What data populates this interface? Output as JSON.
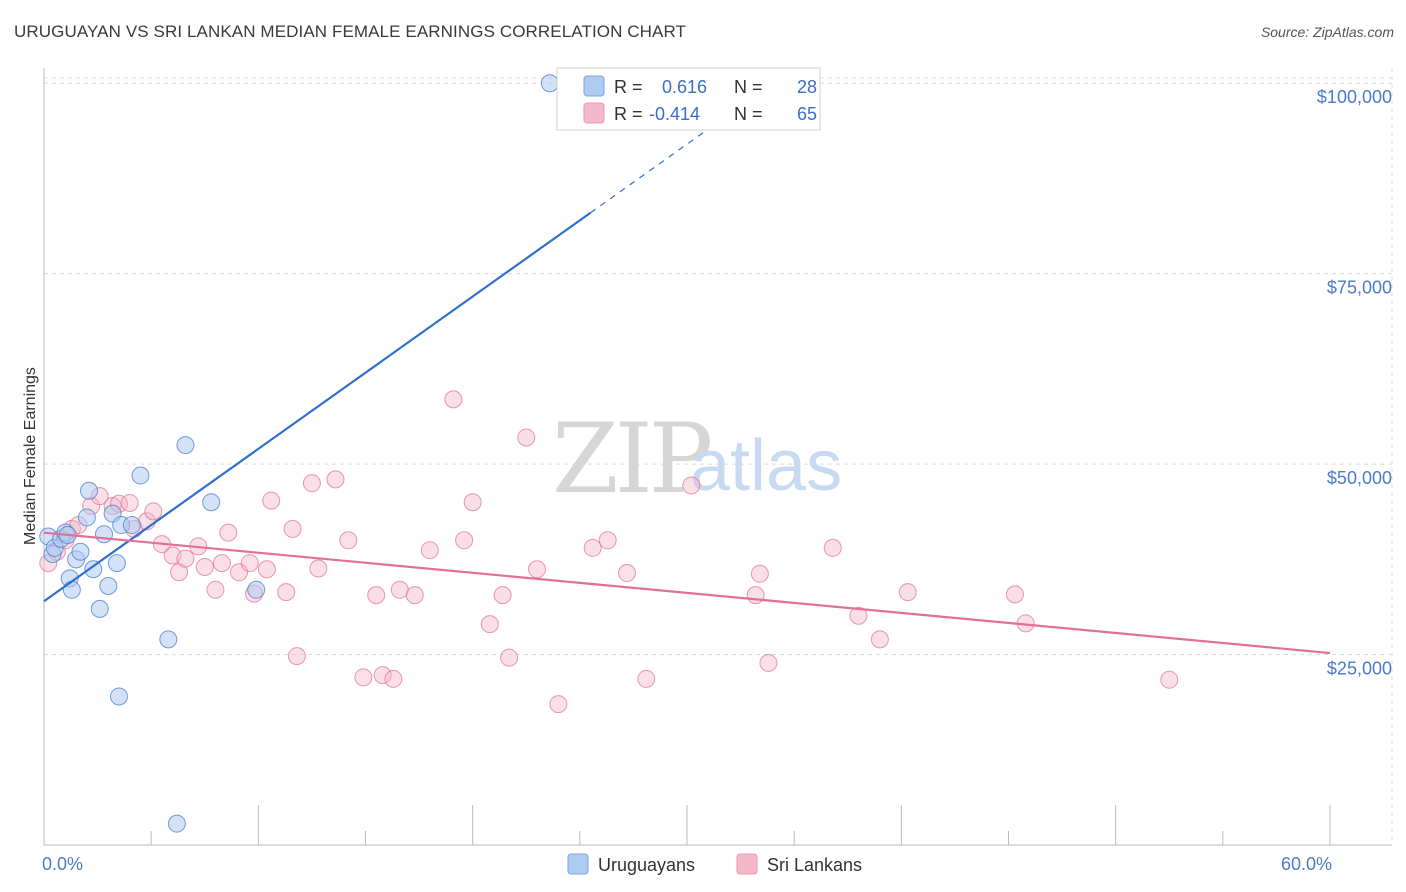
{
  "title": "URUGUAYAN VS SRI LANKAN MEDIAN FEMALE EARNINGS CORRELATION CHART",
  "source": "Source: ZipAtlas.com",
  "watermark": {
    "zip": "ZIP",
    "atlas": "atlas"
  },
  "colors": {
    "blue": "#4a7cc9",
    "blue_fill": "#aecbf1",
    "blue_line": "#2f6fd0",
    "pink": "#e06d96",
    "pink_fill": "#f5b8ca",
    "pink_line": "#e36e98",
    "grid": "#dcdcdc",
    "axis": "#999999"
  },
  "legend_top": {
    "rows": [
      {
        "series": "Uruguayans",
        "r_label": "R =",
        "r_value": "0.616",
        "n_label": "N =",
        "n_value": "28"
      },
      {
        "series": "Sri Lankans",
        "r_label": "R =",
        "r_value": "-0.414",
        "n_label": "N =",
        "n_value": "65"
      }
    ]
  },
  "legend_bottom": [
    "Uruguayans",
    "Sri Lankans"
  ],
  "chart_data": {
    "type": "scatter",
    "title": "URUGUAYAN VS SRI LANKAN MEDIAN FEMALE EARNINGS CORRELATION CHART",
    "xlabel": "",
    "ylabel": "Median Female Earnings",
    "xlim": [
      0,
      60
    ],
    "ylim": [
      0,
      102000
    ],
    "x_tick_labels": [
      {
        "x": 0,
        "label": "0.0%"
      },
      {
        "x": 60,
        "label": "60.0%"
      }
    ],
    "y_ticks": [
      {
        "y": 25000,
        "label": "$25,000"
      },
      {
        "y": 50000,
        "label": "$50,000"
      },
      {
        "y": 75000,
        "label": "$75,000"
      },
      {
        "y": 100000,
        "label": "$100,000"
      }
    ],
    "series": [
      {
        "name": "Uruguayans",
        "points": [
          [
            0.2,
            40500
          ],
          [
            0.4,
            38200
          ],
          [
            0.5,
            39000
          ],
          [
            0.8,
            40200
          ],
          [
            1.0,
            41000
          ],
          [
            1.2,
            35000
          ],
          [
            1.3,
            33500
          ],
          [
            1.5,
            37500
          ],
          [
            1.7,
            38500
          ],
          [
            2.0,
            43000
          ],
          [
            2.1,
            46500
          ],
          [
            2.3,
            36200
          ],
          [
            2.6,
            31000
          ],
          [
            2.8,
            40800
          ],
          [
            3.0,
            34000
          ],
          [
            3.2,
            43500
          ],
          [
            3.4,
            37000
          ],
          [
            3.5,
            19500
          ],
          [
            3.6,
            42000
          ],
          [
            4.1,
            42000
          ],
          [
            4.5,
            48500
          ],
          [
            5.8,
            27000
          ],
          [
            6.2,
            2800
          ],
          [
            6.6,
            52500
          ],
          [
            7.8,
            45000
          ],
          [
            9.9,
            33500
          ],
          [
            23.6,
            100000
          ],
          [
            1.1,
            40700
          ]
        ],
        "trend": {
          "x0": 0,
          "y0": 32000,
          "x1": 25.5,
          "y1": 83000,
          "dash_x1": 32.5,
          "dash_y1": 97000
        }
      },
      {
        "name": "Sri Lankans",
        "points": [
          [
            0.2,
            37000
          ],
          [
            0.6,
            38500
          ],
          [
            1.0,
            40000
          ],
          [
            1.3,
            41500
          ],
          [
            1.6,
            42000
          ],
          [
            2.2,
            44500
          ],
          [
            2.6,
            45800
          ],
          [
            3.2,
            44500
          ],
          [
            3.5,
            44800
          ],
          [
            4.0,
            44900
          ],
          [
            4.2,
            41500
          ],
          [
            4.8,
            42500
          ],
          [
            5.1,
            43800
          ],
          [
            5.5,
            39500
          ],
          [
            6.0,
            38000
          ],
          [
            6.3,
            35800
          ],
          [
            6.6,
            37600
          ],
          [
            7.2,
            39200
          ],
          [
            7.5,
            36500
          ],
          [
            8.0,
            33500
          ],
          [
            8.3,
            37000
          ],
          [
            8.6,
            41000
          ],
          [
            9.1,
            35800
          ],
          [
            9.6,
            37000
          ],
          [
            9.8,
            33000
          ],
          [
            10.4,
            36200
          ],
          [
            10.6,
            45200
          ],
          [
            11.3,
            33200
          ],
          [
            11.6,
            41500
          ],
          [
            11.8,
            24800
          ],
          [
            12.5,
            47500
          ],
          [
            12.8,
            36300
          ],
          [
            13.6,
            48000
          ],
          [
            14.2,
            40000
          ],
          [
            14.9,
            22000
          ],
          [
            15.5,
            32800
          ],
          [
            15.8,
            22300
          ],
          [
            16.3,
            21800
          ],
          [
            16.6,
            33500
          ],
          [
            17.3,
            32800
          ],
          [
            18.0,
            38700
          ],
          [
            19.1,
            58500
          ],
          [
            19.6,
            40000
          ],
          [
            20.0,
            45000
          ],
          [
            20.8,
            29000
          ],
          [
            21.4,
            32800
          ],
          [
            21.7,
            24600
          ],
          [
            22.5,
            53500
          ],
          [
            23.0,
            36200
          ],
          [
            24.0,
            18500
          ],
          [
            25.6,
            39000
          ],
          [
            26.3,
            40000
          ],
          [
            27.2,
            35700
          ],
          [
            28.1,
            21800
          ],
          [
            30.2,
            47200
          ],
          [
            33.2,
            32800
          ],
          [
            33.4,
            35600
          ],
          [
            33.8,
            23900
          ],
          [
            36.8,
            39000
          ],
          [
            38.0,
            30100
          ],
          [
            39.0,
            27000
          ],
          [
            40.3,
            33200
          ],
          [
            45.3,
            32900
          ],
          [
            45.8,
            29100
          ],
          [
            52.5,
            21700
          ]
        ],
        "trend": {
          "x0": 0,
          "y0": 41000,
          "x1": 60,
          "y1": 25200
        }
      }
    ]
  }
}
